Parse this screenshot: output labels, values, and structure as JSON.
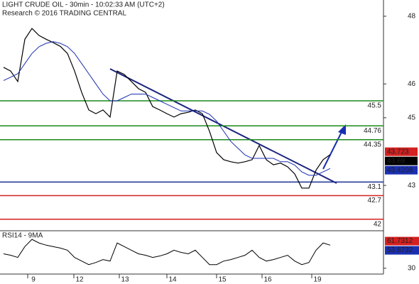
{
  "chart_data": {
    "type": "line",
    "title": "LIGHT CRUDE OIL - 30min - 10:02:33 AM (UTC+2)",
    "subtitle": "Research © 2016 TRADING CENTRAL",
    "date_labels": [
      "9",
      "12",
      "13",
      "14",
      "15",
      "16",
      "19"
    ],
    "ylim": [
      41.66,
      48.48
    ],
    "yticks": [
      48,
      46,
      45,
      43
    ],
    "series": [
      {
        "name": "price",
        "color": "#000000",
        "values": [
          46.49,
          46.38,
          46.07,
          47.32,
          47.64,
          47.43,
          47.32,
          47.22,
          47.11,
          46.9,
          46.38,
          45.75,
          45.23,
          45.12,
          45.23,
          45.02,
          46.38,
          46.28,
          46.07,
          45.86,
          45.75,
          45.33,
          45.23,
          45.12,
          45.02,
          45.12,
          45.16,
          45.23,
          45.12,
          44.6,
          43.97,
          43.76,
          43.7,
          43.66,
          43.7,
          43.76,
          44.18,
          43.76,
          43.61,
          43.66,
          43.55,
          43.34,
          42.92,
          42.92,
          43.45,
          43.76,
          43.91
        ]
      },
      {
        "name": "moving-average",
        "color": "#1a2fb0",
        "values": [
          46.1,
          46.2,
          46.3,
          46.6,
          46.9,
          47.1,
          47.2,
          47.25,
          47.2,
          47.1,
          46.9,
          46.6,
          46.3,
          46.0,
          45.7,
          45.5,
          45.5,
          45.6,
          45.7,
          45.7,
          45.7,
          45.6,
          45.5,
          45.4,
          45.3,
          45.2,
          45.2,
          45.2,
          45.2,
          45.1,
          44.9,
          44.6,
          44.3,
          44.1,
          43.9,
          43.8,
          43.8,
          43.8,
          43.8,
          43.7,
          43.7,
          43.6,
          43.4,
          43.3,
          43.3,
          43.4,
          43.5
        ]
      }
    ],
    "levels": [
      {
        "value": 45.5,
        "color": "#1a8a1a"
      },
      {
        "value": 44.76,
        "color": "#1a8a1a"
      },
      {
        "value": 44.35,
        "color": "#1a8a1a"
      },
      {
        "value": 43.1,
        "color": "#1a2f9a"
      },
      {
        "value": 42.7,
        "color": "#d42020"
      },
      {
        "value": 42,
        "color": "#d42020"
      }
    ],
    "price_labels": [
      {
        "value": 43.723,
        "color": "#d42020"
      },
      {
        "value": 43.69,
        "color": "#000000"
      },
      {
        "value": 43.4208,
        "color": "#1a2fb0"
      }
    ],
    "rsi": {
      "title": "RSI14 - 9MA",
      "ylim": [
        20,
        80
      ],
      "yticks": [
        30
      ],
      "values": [
        50,
        48,
        45,
        60,
        70,
        65,
        62,
        60,
        58,
        55,
        45,
        40,
        35,
        38,
        42,
        40,
        65,
        60,
        55,
        50,
        48,
        45,
        47,
        50,
        55,
        52,
        50,
        55,
        45,
        35,
        35,
        40,
        42,
        45,
        48,
        55,
        45,
        40,
        42,
        45,
        48,
        40,
        35,
        38,
        55,
        65,
        62
      ],
      "color": "#000000",
      "labels": [
        {
          "value": 61.7312,
          "color": "#d42020"
        },
        {
          "value": 53.8732,
          "color": "#1a2fb0"
        }
      ]
    }
  }
}
